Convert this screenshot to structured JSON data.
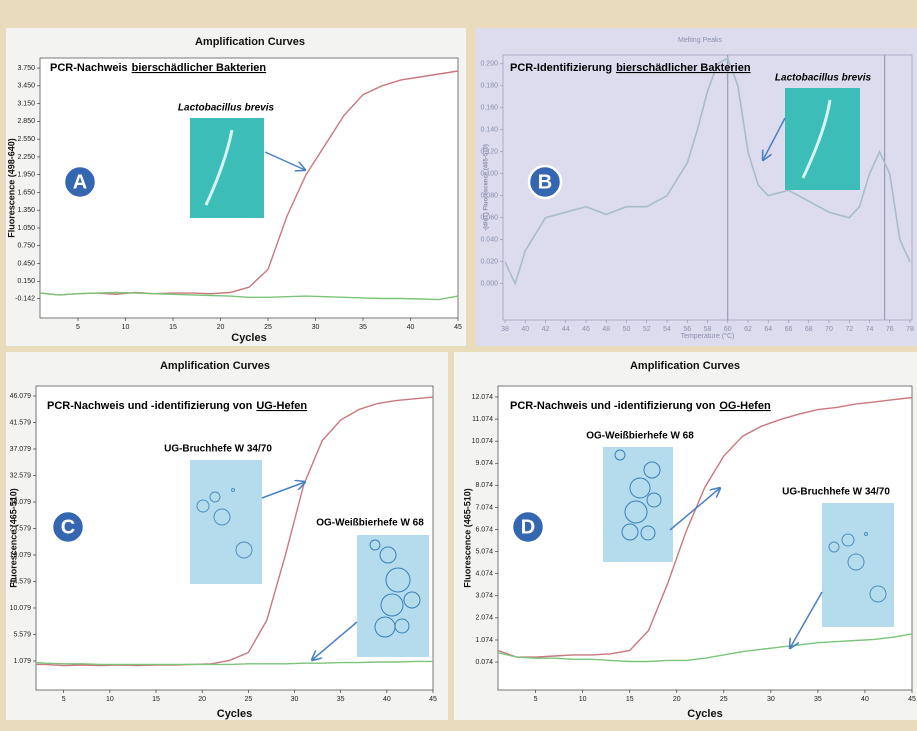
{
  "chart_data": [
    {
      "type": "line",
      "title": "Amplification Curves",
      "subtitle": [
        "PCR-Nachweis",
        "bierschädlicher Bakterien"
      ],
      "panel_label": "A",
      "xlabel": "Cycles",
      "ylabel": "Fluorescence (498-640)",
      "x": [
        1,
        3,
        5,
        7,
        9,
        11,
        13,
        15,
        17,
        19,
        21,
        23,
        25,
        27,
        29,
        31,
        33,
        35,
        37,
        39,
        41,
        43,
        45
      ],
      "series": [
        {
          "name": "Lactobacillus brevis",
          "color": "#c9787e",
          "values": [
            -0.05,
            -0.08,
            -0.06,
            -0.05,
            -0.07,
            -0.04,
            -0.06,
            -0.05,
            -0.05,
            -0.06,
            -0.04,
            0.05,
            0.35,
            1.25,
            1.95,
            2.45,
            2.95,
            3.3,
            3.45,
            3.55,
            3.6,
            3.65,
            3.7
          ]
        },
        {
          "color": "#7cc47a",
          "values": [
            -0.05,
            -0.08,
            -0.06,
            -0.05,
            -0.04,
            -0.05,
            -0.06,
            -0.07,
            -0.08,
            -0.09,
            -0.1,
            -0.12,
            -0.12,
            -0.11,
            -0.1,
            -0.11,
            -0.12,
            -0.13,
            -0.14,
            -0.14,
            -0.15,
            -0.16,
            -0.1
          ]
        }
      ],
      "xlim": [
        1,
        45
      ],
      "ylim": [
        -0.47,
        3.92
      ],
      "xticks": [
        5,
        10,
        15,
        20,
        25,
        30,
        35,
        40,
        45
      ],
      "yticks": [
        {
          "value": 3.75,
          "label": "3.750"
        },
        {
          "value": 3.45,
          "label": "3.450"
        },
        {
          "value": 3.15,
          "label": "3.150"
        },
        {
          "value": 2.85,
          "label": "2.850"
        },
        {
          "value": 2.55,
          "label": "2.550"
        },
        {
          "value": 2.25,
          "label": "2.250"
        },
        {
          "value": 1.95,
          "label": "1.950"
        },
        {
          "value": 1.65,
          "label": "1.650"
        },
        {
          "value": 1.35,
          "label": "1.350"
        },
        {
          "value": 1.05,
          "label": "1.050"
        },
        {
          "value": 0.75,
          "label": "0.750"
        },
        {
          "value": 0.45,
          "label": "0.450"
        },
        {
          "value": 0.15,
          "label": "0.150"
        },
        -0.142
      ]
    },
    {
      "type": "line",
      "title": "Melting Peaks",
      "subtitle": [
        "PCR-Identifizierung",
        "bierschädlicher Bakterien"
      ],
      "panel_label": "B",
      "xlabel": "Temperature (°C)",
      "ylabel": "-(d/dT) Fluorescence (465-510)",
      "x": [
        38,
        39,
        40,
        42,
        44,
        46,
        48,
        50,
        52,
        54,
        56,
        57,
        58,
        59,
        60,
        61,
        62,
        63,
        64,
        66,
        68,
        70,
        72,
        73,
        74,
        75,
        76,
        77,
        78
      ],
      "series": [
        {
          "name": "Lactobacillus brevis",
          "color": "#a9bccb",
          "values": [
            0.02,
            0.0,
            0.03,
            0.06,
            0.065,
            0.07,
            0.063,
            0.07,
            0.07,
            0.08,
            0.11,
            0.14,
            0.175,
            0.2,
            0.205,
            0.18,
            0.12,
            0.09,
            0.08,
            0.085,
            0.075,
            0.065,
            0.06,
            0.07,
            0.1,
            0.12,
            0.1,
            0.04,
            0.02
          ]
        }
      ],
      "vlines": [
        60,
        75.5
      ],
      "xlim": [
        37.8,
        78.2
      ],
      "ylim": [
        -0.033,
        0.208
      ],
      "xticks": [
        38,
        40,
        42,
        44,
        46,
        48,
        50,
        52,
        54,
        56,
        58,
        60,
        62,
        64,
        66,
        68,
        70,
        72,
        74,
        76,
        78
      ],
      "yticks": [
        {
          "value": 0.2,
          "label": "0.200"
        },
        {
          "value": 0.18,
          "label": "0.180"
        },
        {
          "value": 0.16,
          "label": "0.160"
        },
        {
          "value": 0.14,
          "label": "0.140"
        },
        {
          "value": 0.12,
          "label": "0.120"
        },
        {
          "value": 0.1,
          "label": "0.100"
        },
        {
          "value": 0.08,
          "label": "0.080"
        },
        {
          "value": 0.06,
          "label": "0.060"
        },
        {
          "value": 0.04,
          "label": "0.040"
        },
        {
          "value": 0.02,
          "label": "0.020"
        },
        {
          "value": 0,
          "label": "0.000"
        }
      ]
    },
    {
      "type": "line",
      "title": "Amplification Curves",
      "subtitle": [
        "PCR-Nachweis und -identifizierung von",
        "UG-Hefen"
      ],
      "panel_label": "C",
      "xlabel": "Cycles",
      "ylabel": "Fluorescence (465-510)",
      "x": [
        2,
        3,
        5,
        7,
        9,
        11,
        13,
        15,
        17,
        19,
        21,
        23,
        25,
        27,
        29,
        31,
        33,
        35,
        37,
        39,
        41,
        43,
        45
      ],
      "series": [
        {
          "name": "UG-Bruchhefe W 34/70",
          "color": "#c9787e",
          "values": [
            0.5,
            0.5,
            0.3,
            0.4,
            0.3,
            0.4,
            0.3,
            0.4,
            0.4,
            0.5,
            0.6,
            1.2,
            2.5,
            8,
            19,
            31,
            38.5,
            42,
            43.8,
            44.8,
            45.3,
            45.6,
            45.9
          ]
        },
        {
          "name": "OG-Weißbierhefe W 68",
          "color": "#7cc47a",
          "values": [
            0.8,
            0.7,
            0.6,
            0.6,
            0.5,
            0.5,
            0.5,
            0.5,
            0.5,
            0.5,
            0.5,
            0.5,
            0.6,
            0.6,
            0.6,
            0.7,
            0.7,
            0.8,
            0.8,
            0.9,
            0.9,
            1.0,
            1.0
          ]
        }
      ],
      "xlim": [
        2,
        45
      ],
      "ylim": [
        -3.85,
        47.78
      ],
      "xticks": [
        5,
        10,
        15,
        20,
        25,
        30,
        35,
        40,
        45
      ],
      "yticks": [
        46.079,
        41.579,
        37.079,
        32.579,
        28.079,
        23.579,
        19.079,
        14.579,
        10.079,
        5.579,
        1.079
      ]
    },
    {
      "type": "line",
      "title": "Amplification Curves",
      "subtitle": [
        "PCR-Nachweis und -identifizierung von",
        "OG-Hefen"
      ],
      "panel_label": "D",
      "xlabel": "Cycles",
      "ylabel": "Fluorescence (465-510)",
      "x": [
        1,
        3,
        5,
        7,
        9,
        11,
        13,
        15,
        17,
        19,
        21,
        23,
        25,
        27,
        29,
        31,
        33,
        35,
        37,
        39,
        41,
        43,
        45
      ],
      "series": [
        {
          "name": "OG-Weißbierhefe W 68",
          "color": "#c9787e",
          "values": [
            0.6,
            0.3,
            0.3,
            0.35,
            0.4,
            0.4,
            0.45,
            0.6,
            1.5,
            3.6,
            6,
            8,
            9.4,
            10.3,
            10.75,
            11.05,
            11.3,
            11.5,
            11.6,
            11.75,
            11.85,
            11.95,
            12.05
          ]
        },
        {
          "name": "UG-Bruchhefe W 34/70",
          "color": "#7cc47a",
          "values": [
            0.5,
            0.3,
            0.25,
            0.25,
            0.2,
            0.2,
            0.15,
            0.1,
            0.1,
            0.15,
            0.15,
            0.25,
            0.4,
            0.55,
            0.65,
            0.75,
            0.85,
            0.95,
            1.0,
            1.05,
            1.1,
            1.2,
            1.35
          ]
        }
      ],
      "xlim": [
        1,
        45
      ],
      "ylim": [
        -1.19,
        12.57
      ],
      "xticks": [
        5,
        10,
        15,
        20,
        25,
        30,
        35,
        40,
        45
      ],
      "yticks": [
        12.074,
        11.074,
        10.074,
        9.074,
        8.074,
        7.074,
        6.074,
        5.074,
        4.074,
        3.074,
        2.074,
        1.074,
        0.074
      ]
    }
  ]
}
